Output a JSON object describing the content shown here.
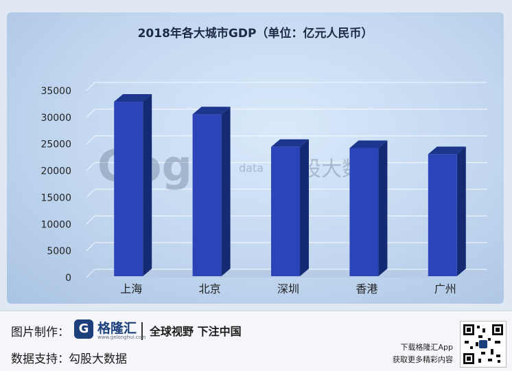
{
  "chart_data": {
    "type": "bar",
    "title": "2018年各大城市GDP（单位：亿元人民币）",
    "categories": [
      "上海",
      "北京",
      "深圳",
      "香港",
      "广州"
    ],
    "values": [
      32680,
      30320,
      24222,
      24000,
      22859
    ],
    "ylim": [
      0,
      35000
    ],
    "yticks": [
      0,
      5000,
      10000,
      15000,
      20000,
      25000,
      30000,
      35000
    ],
    "xlabel": "",
    "ylabel": "",
    "grid": true,
    "bar_color": "#2b45b8"
  },
  "watermark": {
    "logo_text": "Gogu",
    "sub_text": "data",
    "cn_text": "勾股大数据"
  },
  "footer": {
    "credit_label": "图片制作：",
    "brand_name": "格隆汇",
    "brand_url": "www.gelonghui.com",
    "slogan": "全球视野 下注中国",
    "data_label": "数据支持：",
    "data_source": "勾股大数据",
    "app_promo_1": "下载格隆汇App",
    "app_promo_2": "获取更多精彩内容"
  }
}
